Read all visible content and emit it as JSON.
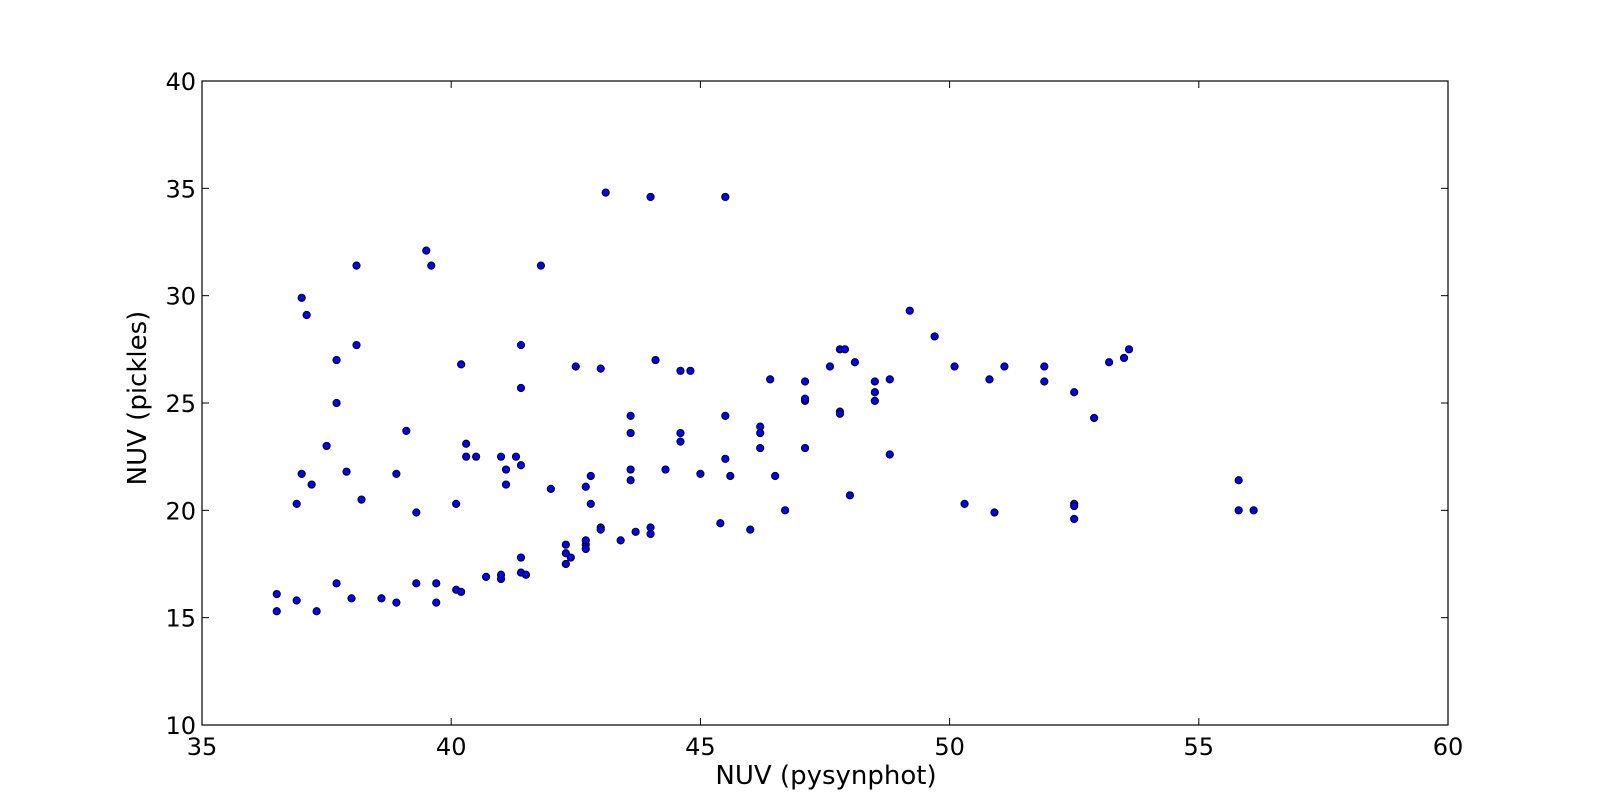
{
  "chart_data": {
    "type": "scatter",
    "title": "",
    "xlabel": "NUV (pysynphot)",
    "ylabel": "NUV (pickles)",
    "xlim": [
      35,
      60
    ],
    "ylim": [
      10,
      40
    ],
    "xticks": [
      35,
      40,
      45,
      50,
      55,
      60
    ],
    "yticks": [
      10,
      15,
      20,
      25,
      30,
      35,
      40
    ],
    "xtick_labels": [
      "35",
      "40",
      "45",
      "50",
      "55",
      "60"
    ],
    "ytick_labels": [
      "10",
      "15",
      "20",
      "25",
      "30",
      "35",
      "40"
    ],
    "grid": false,
    "legend": "none",
    "marker_color": "#0000ff",
    "marker_edge_color": "#000000",
    "points": [
      {
        "x": 36.5,
        "y": 16.1
      },
      {
        "x": 36.5,
        "y": 15.3
      },
      {
        "x": 36.9,
        "y": 15.8
      },
      {
        "x": 36.9,
        "y": 20.3
      },
      {
        "x": 37.0,
        "y": 21.7
      },
      {
        "x": 37.0,
        "y": 29.9
      },
      {
        "x": 37.1,
        "y": 29.1
      },
      {
        "x": 37.2,
        "y": 21.2
      },
      {
        "x": 37.3,
        "y": 15.3
      },
      {
        "x": 37.5,
        "y": 23.0
      },
      {
        "x": 37.7,
        "y": 16.6
      },
      {
        "x": 37.7,
        "y": 27.0
      },
      {
        "x": 37.7,
        "y": 25.0
      },
      {
        "x": 37.9,
        "y": 21.8
      },
      {
        "x": 38.0,
        "y": 15.9
      },
      {
        "x": 38.1,
        "y": 31.4
      },
      {
        "x": 38.1,
        "y": 27.7
      },
      {
        "x": 38.2,
        "y": 20.5
      },
      {
        "x": 38.6,
        "y": 15.9
      },
      {
        "x": 38.9,
        "y": 15.7
      },
      {
        "x": 38.9,
        "y": 21.7
      },
      {
        "x": 39.1,
        "y": 23.7
      },
      {
        "x": 39.3,
        "y": 16.6
      },
      {
        "x": 39.3,
        "y": 19.9
      },
      {
        "x": 39.5,
        "y": 32.1
      },
      {
        "x": 39.6,
        "y": 31.4
      },
      {
        "x": 39.7,
        "y": 15.7
      },
      {
        "x": 39.7,
        "y": 16.6
      },
      {
        "x": 40.1,
        "y": 16.3
      },
      {
        "x": 40.1,
        "y": 20.3
      },
      {
        "x": 40.2,
        "y": 26.8
      },
      {
        "x": 40.2,
        "y": 16.2
      },
      {
        "x": 40.3,
        "y": 22.5
      },
      {
        "x": 40.3,
        "y": 23.1
      },
      {
        "x": 40.5,
        "y": 22.5
      },
      {
        "x": 40.7,
        "y": 16.9
      },
      {
        "x": 41.0,
        "y": 16.8
      },
      {
        "x": 41.0,
        "y": 22.5
      },
      {
        "x": 41.0,
        "y": 17.0
      },
      {
        "x": 41.1,
        "y": 21.2
      },
      {
        "x": 41.1,
        "y": 21.9
      },
      {
        "x": 41.3,
        "y": 22.5
      },
      {
        "x": 41.4,
        "y": 22.1
      },
      {
        "x": 41.4,
        "y": 17.8
      },
      {
        "x": 41.4,
        "y": 27.7
      },
      {
        "x": 41.4,
        "y": 25.7
      },
      {
        "x": 41.4,
        "y": 17.1
      },
      {
        "x": 41.5,
        "y": 17.0
      },
      {
        "x": 41.8,
        "y": 31.4
      },
      {
        "x": 42.0,
        "y": 21.0
      },
      {
        "x": 42.3,
        "y": 18.4
      },
      {
        "x": 42.3,
        "y": 18.0
      },
      {
        "x": 42.3,
        "y": 17.5
      },
      {
        "x": 42.4,
        "y": 17.8
      },
      {
        "x": 42.5,
        "y": 26.7
      },
      {
        "x": 42.7,
        "y": 18.4
      },
      {
        "x": 42.7,
        "y": 18.6
      },
      {
        "x": 42.7,
        "y": 21.1
      },
      {
        "x": 42.7,
        "y": 18.2
      },
      {
        "x": 42.8,
        "y": 21.6
      },
      {
        "x": 42.8,
        "y": 20.3
      },
      {
        "x": 43.0,
        "y": 26.6
      },
      {
        "x": 43.0,
        "y": 19.2
      },
      {
        "x": 43.0,
        "y": 19.1
      },
      {
        "x": 43.1,
        "y": 34.8
      },
      {
        "x": 43.4,
        "y": 18.6
      },
      {
        "x": 43.6,
        "y": 24.4
      },
      {
        "x": 43.6,
        "y": 23.6
      },
      {
        "x": 43.6,
        "y": 21.9
      },
      {
        "x": 43.6,
        "y": 21.4
      },
      {
        "x": 43.7,
        "y": 19.0
      },
      {
        "x": 44.0,
        "y": 19.2
      },
      {
        "x": 44.0,
        "y": 18.9
      },
      {
        "x": 44.0,
        "y": 34.6
      },
      {
        "x": 44.1,
        "y": 27.0
      },
      {
        "x": 44.3,
        "y": 21.9
      },
      {
        "x": 44.6,
        "y": 26.5
      },
      {
        "x": 44.6,
        "y": 23.6
      },
      {
        "x": 44.6,
        "y": 23.2
      },
      {
        "x": 44.8,
        "y": 26.5
      },
      {
        "x": 45.0,
        "y": 21.7
      },
      {
        "x": 45.4,
        "y": 19.4
      },
      {
        "x": 45.5,
        "y": 34.6
      },
      {
        "x": 45.5,
        "y": 24.4
      },
      {
        "x": 45.5,
        "y": 22.4
      },
      {
        "x": 45.6,
        "y": 21.6
      },
      {
        "x": 46.0,
        "y": 19.1
      },
      {
        "x": 46.2,
        "y": 23.9
      },
      {
        "x": 46.2,
        "y": 23.6
      },
      {
        "x": 46.2,
        "y": 22.9
      },
      {
        "x": 46.4,
        "y": 26.1
      },
      {
        "x": 46.5,
        "y": 21.6
      },
      {
        "x": 46.7,
        "y": 20.0
      },
      {
        "x": 47.1,
        "y": 26.0
      },
      {
        "x": 47.1,
        "y": 25.1
      },
      {
        "x": 47.1,
        "y": 25.2
      },
      {
        "x": 47.1,
        "y": 22.9
      },
      {
        "x": 47.6,
        "y": 26.7
      },
      {
        "x": 47.8,
        "y": 27.5
      },
      {
        "x": 47.8,
        "y": 24.6
      },
      {
        "x": 47.8,
        "y": 24.5
      },
      {
        "x": 47.9,
        "y": 27.5
      },
      {
        "x": 48.0,
        "y": 20.7
      },
      {
        "x": 48.1,
        "y": 26.9
      },
      {
        "x": 48.5,
        "y": 26.0
      },
      {
        "x": 48.5,
        "y": 25.5
      },
      {
        "x": 48.5,
        "y": 25.1
      },
      {
        "x": 48.8,
        "y": 26.1
      },
      {
        "x": 48.8,
        "y": 22.6
      },
      {
        "x": 49.2,
        "y": 29.3
      },
      {
        "x": 49.7,
        "y": 28.1
      },
      {
        "x": 50.1,
        "y": 26.7
      },
      {
        "x": 50.3,
        "y": 20.3
      },
      {
        "x": 50.8,
        "y": 26.1
      },
      {
        "x": 50.9,
        "y": 19.9
      },
      {
        "x": 51.1,
        "y": 26.7
      },
      {
        "x": 51.9,
        "y": 26.7
      },
      {
        "x": 51.9,
        "y": 26.0
      },
      {
        "x": 52.5,
        "y": 25.5
      },
      {
        "x": 52.5,
        "y": 20.3
      },
      {
        "x": 52.5,
        "y": 20.2
      },
      {
        "x": 52.5,
        "y": 19.6
      },
      {
        "x": 52.9,
        "y": 24.3
      },
      {
        "x": 53.2,
        "y": 26.9
      },
      {
        "x": 53.5,
        "y": 27.1
      },
      {
        "x": 53.6,
        "y": 27.5
      },
      {
        "x": 55.8,
        "y": 21.4
      },
      {
        "x": 55.8,
        "y": 20.0
      },
      {
        "x": 56.1,
        "y": 20.0
      }
    ]
  }
}
